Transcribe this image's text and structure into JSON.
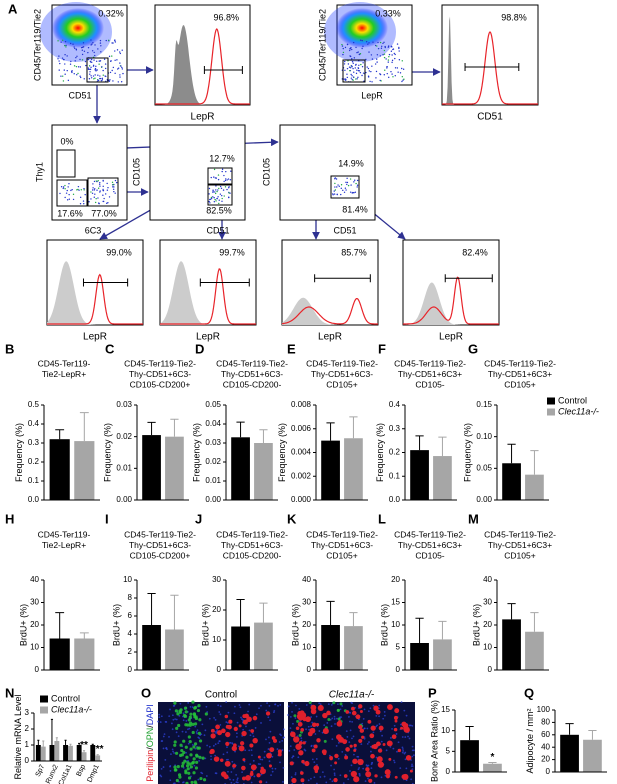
{
  "flow": {
    "panel": "A",
    "dot_plots": [
      {
        "ylabel": "CD45/Ter119/Tie2",
        "xlabel": "CD51",
        "gates": [
          "0.32%"
        ]
      },
      {
        "ylabel": "CD45/Ter119/Tie2",
        "xlabel": "LepR",
        "gates": [
          "0.33%"
        ]
      },
      {
        "ylabel": "Thy1",
        "xlabel": "6C3",
        "gates": [
          "0%",
          "17.6%",
          "77.0%"
        ]
      },
      {
        "ylabel": "CD105",
        "xlabel": "CD51",
        "gates": [
          "12.7%",
          "82.5%"
        ]
      },
      {
        "ylabel": "CD105",
        "xlabel": "CD51",
        "gates": [
          "14.9%",
          "81.4%"
        ]
      }
    ],
    "histograms": [
      {
        "xlabel": "LepR",
        "gate": "96.8%"
      },
      {
        "xlabel": "CD51",
        "gate": "98.8%"
      },
      {
        "xlabel": "LepR",
        "gate": "99.0%"
      },
      {
        "xlabel": "LepR",
        "gate": "99.7%"
      },
      {
        "xlabel": "LepR",
        "gate": "85.7%"
      },
      {
        "xlabel": "LepR",
        "gate": "82.4%"
      }
    ]
  },
  "image_panel": {
    "panel": "O",
    "conditions": [
      "Control",
      "Clec11a-/-"
    ],
    "stain": [
      "Perilipin",
      "/",
      "OPN",
      "/",
      "DAPI"
    ]
  },
  "chart_data": [
    {
      "type": "bar",
      "panel": "B",
      "title": [
        "CD45-Ter119-",
        "Tie2-LepR+"
      ],
      "ylabel": "Frequency (%)",
      "ylim": [
        0,
        0.5
      ],
      "yticks": [
        {
          "value": 0,
          "label": "0.0"
        },
        0.1,
        0.2,
        0.3,
        0.4,
        0.5
      ],
      "series": [
        {
          "color": "#000000",
          "values": [
            0.32
          ],
          "errors": [
            0.05
          ]
        },
        {
          "color": "#a6a6a6",
          "values": [
            0.31
          ],
          "errors": [
            0.15
          ]
        }
      ]
    },
    {
      "type": "bar",
      "panel": "C",
      "title": [
        "CD45-Ter119-Tie2-",
        "Thy-CD51+6C3-",
        "CD105-CD200+"
      ],
      "ylabel": "Frequency (%)",
      "ylim": [
        0,
        0.03
      ],
      "yticks": [
        {
          "value": 0,
          "label": "0.00"
        },
        0.01,
        0.02,
        0.03
      ],
      "series": [
        {
          "color": "#000000",
          "values": [
            0.0205
          ],
          "errors": [
            0.004
          ]
        },
        {
          "color": "#a6a6a6",
          "values": [
            0.02
          ],
          "errors": [
            0.0055
          ]
        }
      ]
    },
    {
      "type": "bar",
      "panel": "D",
      "title": [
        "CD45-Ter119-Tie2-",
        "Thy-CD51+6C3-",
        "CD105-CD200-"
      ],
      "ylabel": "Frequency (%)",
      "ylim": [
        0,
        0.05
      ],
      "yticks": [
        {
          "value": 0,
          "label": "0.00"
        },
        0.01,
        0.02,
        0.03,
        0.04,
        0.05
      ],
      "series": [
        {
          "color": "#000000",
          "values": [
            0.033
          ],
          "errors": [
            0.008
          ]
        },
        {
          "color": "#a6a6a6",
          "values": [
            0.03
          ],
          "errors": [
            0.007
          ]
        }
      ]
    },
    {
      "type": "bar",
      "panel": "E",
      "title": [
        "CD45-Ter119-Tie2-",
        "Thy-CD51+6C3-",
        "CD105+"
      ],
      "ylabel": "Frequency (%)",
      "ylim": [
        0,
        0.008
      ],
      "yticks": [
        {
          "value": 0,
          "label": "0.000"
        },
        0.002,
        0.004,
        0.006,
        0.008
      ],
      "series": [
        {
          "color": "#000000",
          "values": [
            0.005
          ],
          "errors": [
            0.0015
          ]
        },
        {
          "color": "#a6a6a6",
          "values": [
            0.0052
          ],
          "errors": [
            0.0018
          ]
        }
      ]
    },
    {
      "type": "bar",
      "panel": "F",
      "title": [
        "CD45-Ter119-Tie2-",
        "Thy-CD51+6C3+",
        "CD105-"
      ],
      "ylabel": "Frequency (%)",
      "ylim": [
        0,
        0.4
      ],
      "yticks": [
        {
          "value": 0,
          "label": "0.0"
        },
        0.1,
        0.2,
        0.3,
        0.4
      ],
      "series": [
        {
          "color": "#000000",
          "values": [
            0.21
          ],
          "errors": [
            0.06
          ]
        },
        {
          "color": "#a6a6a6",
          "values": [
            0.185
          ],
          "errors": [
            0.08
          ]
        }
      ]
    },
    {
      "type": "bar",
      "panel": "G",
      "title": [
        "CD45-Ter119-Tie2-",
        "Thy-CD51+6C3+",
        "CD105+"
      ],
      "ylabel": "Frequency (%)",
      "ylim": [
        0,
        0.15
      ],
      "yticks": [
        {
          "value": 0,
          "label": "0.00"
        },
        0.05,
        {
          "value": 0.1,
          "label": "0.10"
        },
        0.15
      ],
      "legend": "upper right",
      "series": [
        {
          "name": "Control",
          "color": "#000000",
          "values": [
            0.058
          ],
          "errors": [
            0.03
          ]
        },
        {
          "name": "Clec11a-/-",
          "color": "#a6a6a6",
          "values": [
            0.04
          ],
          "errors": [
            0.038
          ]
        }
      ]
    },
    {
      "type": "bar",
      "panel": "H",
      "title": [
        "CD45-Ter119-",
        "Tie2-LepR+"
      ],
      "ylabel": "BrdU+ (%)",
      "ylim": [
        0,
        40
      ],
      "yticks": [
        0,
        10,
        20,
        30,
        40
      ],
      "series": [
        {
          "color": "#000000",
          "values": [
            14
          ],
          "errors": [
            11.5
          ]
        },
        {
          "color": "#a6a6a6",
          "values": [
            14
          ],
          "errors": [
            2.5
          ]
        }
      ]
    },
    {
      "type": "bar",
      "panel": "I",
      "title": [
        "CD45-Ter119-Tie2-",
        "Thy-CD51+6C3-",
        "CD105-CD200+"
      ],
      "ylabel": "BrdU+ (%)",
      "ylim": [
        0,
        10
      ],
      "yticks": [
        0,
        2,
        4,
        6,
        8,
        10
      ],
      "series": [
        {
          "color": "#000000",
          "values": [
            5
          ],
          "errors": [
            3.5
          ]
        },
        {
          "color": "#a6a6a6",
          "values": [
            4.5
          ],
          "errors": [
            3.8
          ]
        }
      ]
    },
    {
      "type": "bar",
      "panel": "J",
      "title": [
        "CD45-Ter119-Tie2-",
        "Thy-CD51+6C3-",
        "CD105-CD200-"
      ],
      "ylabel": "BrdU+ (%)",
      "ylim": [
        0,
        30
      ],
      "yticks": [
        0,
        10,
        20,
        30
      ],
      "series": [
        {
          "color": "#000000",
          "values": [
            14.5
          ],
          "errors": [
            9
          ]
        },
        {
          "color": "#a6a6a6",
          "values": [
            15.8
          ],
          "errors": [
            6.5
          ]
        }
      ]
    },
    {
      "type": "bar",
      "panel": "K",
      "title": [
        "CD45-Ter119-Tie2-",
        "Thy-CD51+6C3-",
        "CD105+"
      ],
      "ylabel": "BrdU+ (%)",
      "ylim": [
        0,
        40
      ],
      "yticks": [
        0,
        10,
        20,
        30,
        40
      ],
      "series": [
        {
          "color": "#000000",
          "values": [
            20
          ],
          "errors": [
            10.5
          ]
        },
        {
          "color": "#a6a6a6",
          "values": [
            19.5
          ],
          "errors": [
            6
          ]
        }
      ]
    },
    {
      "type": "bar",
      "panel": "L",
      "title": [
        "CD45-Ter119-Tie2-",
        "Thy-CD51+6C3+",
        "CD105-"
      ],
      "ylabel": "BrdU+ (%)",
      "ylim": [
        0,
        20
      ],
      "yticks": [
        0,
        5,
        10,
        15,
        20
      ],
      "series": [
        {
          "color": "#000000",
          "values": [
            6
          ],
          "errors": [
            5.5
          ]
        },
        {
          "color": "#a6a6a6",
          "values": [
            6.8
          ],
          "errors": [
            4
          ]
        }
      ]
    },
    {
      "type": "bar",
      "panel": "M",
      "title": [
        "CD45-Ter119-Tie2-",
        "Thy-CD51+6C3+",
        "CD105+"
      ],
      "ylabel": "BrdU+ (%)",
      "ylim": [
        0,
        40
      ],
      "yticks": [
        0,
        10,
        20,
        30,
        40
      ],
      "series": [
        {
          "color": "#000000",
          "values": [
            22.5
          ],
          "errors": [
            7
          ]
        },
        {
          "color": "#a6a6a6",
          "values": [
            17
          ],
          "errors": [
            8.5
          ]
        }
      ]
    },
    {
      "type": "bar",
      "panel": "N",
      "ylabel": "Relative mRNA Level",
      "categories": [
        "Sp7",
        "Runx2",
        "Col1a1",
        "Bsp",
        "Dmp1"
      ],
      "ylim": [
        0,
        3
      ],
      "yticks": [
        0,
        1,
        2,
        3
      ],
      "legend": "upper left",
      "series": [
        {
          "name": "Control",
          "color": "#000000",
          "values": [
            1,
            1,
            1,
            1,
            1
          ],
          "errors": [
            0.3,
            1.6,
            0.3,
            0.1,
            0.05
          ]
        },
        {
          "name": "Clec11a-/-",
          "color": "#a6a6a6",
          "values": [
            0.9,
            1.25,
            0.95,
            0.55,
            0.35
          ],
          "errors": [
            0.35,
            0.2,
            0.1,
            0.1,
            0.05
          ]
        }
      ],
      "annotations": [
        null,
        null,
        null,
        "**",
        "***"
      ]
    },
    {
      "type": "bar",
      "panel": "P",
      "ylabel": "Bone Area Ratio (%)",
      "ylim": [
        0,
        15
      ],
      "yticks": [
        0,
        5,
        10,
        15
      ],
      "series": [
        {
          "color": "#000000",
          "values": [
            7.7
          ],
          "errors": [
            3.3
          ]
        },
        {
          "color": "#a6a6a6",
          "values": [
            2
          ],
          "errors": [
            0.3
          ]
        }
      ],
      "annotations": [
        "*"
      ]
    },
    {
      "type": "bar",
      "panel": "Q",
      "ylabel": "Adipocyte / mm²",
      "ylim": [
        0,
        100
      ],
      "yticks": [
        0,
        20,
        40,
        60,
        80,
        100
      ],
      "series": [
        {
          "color": "#000000",
          "values": [
            60
          ],
          "errors": [
            18
          ]
        },
        {
          "color": "#a6a6a6",
          "values": [
            52
          ],
          "errors": [
            15
          ]
        }
      ]
    }
  ]
}
